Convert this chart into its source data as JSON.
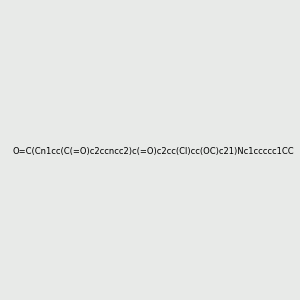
{
  "smiles": "O=C(Cn1cc(C(=O)c2ccncc2)c(=O)c2cc(Cl)cc(OC)c21)Nc1ccccc1CC",
  "image_size": 300,
  "background_color": "#e8eae8"
}
